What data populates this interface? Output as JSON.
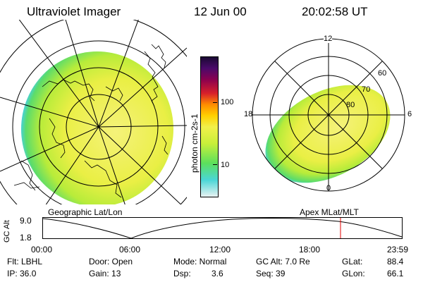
{
  "header": {
    "title": "Ultraviolet Imager",
    "date": "12 Jun 00",
    "time": "20:02:58 UT"
  },
  "colorbar": {
    "unit_label": "photon cm-2s-1",
    "ticks": [
      "100",
      "10"
    ],
    "scale": "log"
  },
  "panels": {
    "left_label": "Geographic Lat/Lon",
    "right_label": "Apex MLat/MLT"
  },
  "polar": {
    "mlt_labels": [
      "12",
      "18",
      "6",
      "0"
    ],
    "mlat_labels": [
      "60",
      "70",
      "80"
    ]
  },
  "altitude_plot": {
    "ylabel": "GC Alt",
    "y_ticks": [
      "9.0",
      "1.8"
    ],
    "x_ticks": [
      "00:00",
      "06:00",
      "12:00",
      "18:00",
      "23:59"
    ],
    "current_time_marker": "20:02:58"
  },
  "info": {
    "flt": "Flt: LBHL",
    "ip": "IP: 36.0",
    "door": "Door: Open",
    "gain": "Gain: 13",
    "mode": "Mode: Normal",
    "dsp": "Dsp:",
    "dsp_val": "3.6",
    "gcalt": "GC Alt: 7.0 Re",
    "seq": "Seq: 39",
    "glat": "GLat:",
    "glat_val": "88.4",
    "glon": "GLon:",
    "glon_val": "66.1"
  },
  "colors": {
    "yellow": "#f2f04a",
    "lime": "#c8ef3a",
    "green": "#5ce05c",
    "cyan": "#4ad6d6",
    "marker": "#e00000"
  }
}
